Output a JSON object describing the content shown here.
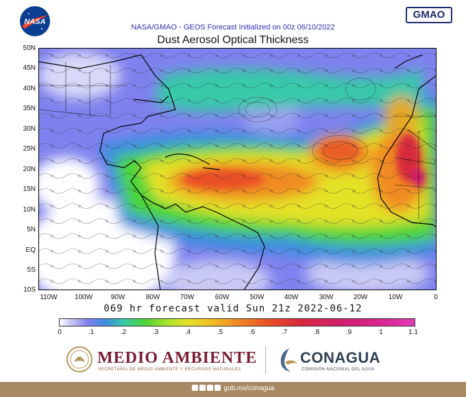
{
  "header": {
    "subtitle": "NASA/GMAO - GEOS Forecast Initialized on 00z 06/10/2022",
    "title": "Dust Aerosol Optical Thickness",
    "nasa_logo_text": "NASA",
    "gmao_logo_text": "GMAO"
  },
  "map": {
    "y_labels": [
      "50N",
      "45N",
      "40N",
      "35N",
      "30N",
      "25N",
      "20N",
      "15N",
      "10N",
      "5N",
      "EQ",
      "5S",
      "10S"
    ],
    "x_labels": [
      "110W",
      "100W",
      "90W",
      "80W",
      "70W",
      "60W",
      "50W",
      "40W",
      "30W",
      "20W",
      "10W",
      "0"
    ],
    "region": "North Atlantic, Americas, West Africa",
    "lat_range": [
      -10,
      50
    ],
    "lon_range": [
      -115,
      0
    ]
  },
  "forecast": {
    "valid_text": "069 hr forecast valid Sun 21z 2022-06-12"
  },
  "colorbar": {
    "labels": [
      "0",
      ".1",
      ".2",
      ".3",
      ".4",
      ".5",
      ".6",
      ".7",
      ".8",
      ".9",
      "1",
      "1.1"
    ],
    "range": [
      0,
      1.1
    ]
  },
  "footer": {
    "ma_title": "MEDIO AMBIENTE",
    "ma_subtitle": "SECRETARÍA DE MEDIO AMBIENTE Y RECURSOS NATURALES",
    "conagua_title": "CONAGUA",
    "conagua_subtitle": "COMISIÓN NACIONAL DEL AGUA",
    "website": "gob.mx/conagua"
  },
  "colors": {
    "nasa_blue": "#0b3d91",
    "title_blue": "#2f2fb0",
    "ma_maroon": "#7a1d33",
    "footer_bar": "#a88a62"
  }
}
